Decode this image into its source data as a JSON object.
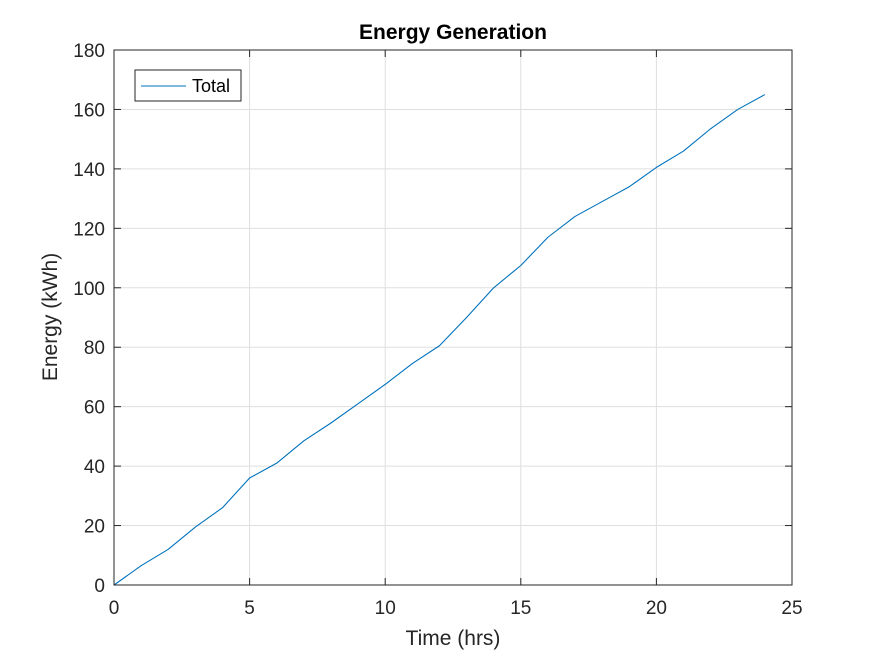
{
  "chart_data": {
    "type": "line",
    "title": "Energy Generation",
    "xlabel": "Time (hrs)",
    "ylabel": "Energy  (kWh)",
    "xlim": [
      0,
      25
    ],
    "ylim": [
      0,
      180
    ],
    "xticks": [
      0,
      5,
      10,
      15,
      20,
      25
    ],
    "yticks": [
      0,
      20,
      40,
      60,
      80,
      100,
      120,
      140,
      160,
      180
    ],
    "grid": true,
    "legend_position": "top-left",
    "series": [
      {
        "name": "Total",
        "color": "#0072BD",
        "x": [
          0,
          1,
          2,
          3,
          4,
          5,
          6,
          7,
          8,
          9,
          10,
          11,
          12,
          13,
          14,
          15,
          16,
          17,
          18,
          19,
          20,
          21,
          22,
          23,
          24
        ],
        "y": [
          0,
          6.5,
          12,
          19.5,
          26,
          36,
          41,
          48.5,
          54.5,
          61,
          67.5,
          74.5,
          80.5,
          90,
          100,
          107.5,
          117,
          124,
          129,
          134,
          140.5,
          146,
          153.5,
          160,
          165
        ]
      }
    ]
  }
}
